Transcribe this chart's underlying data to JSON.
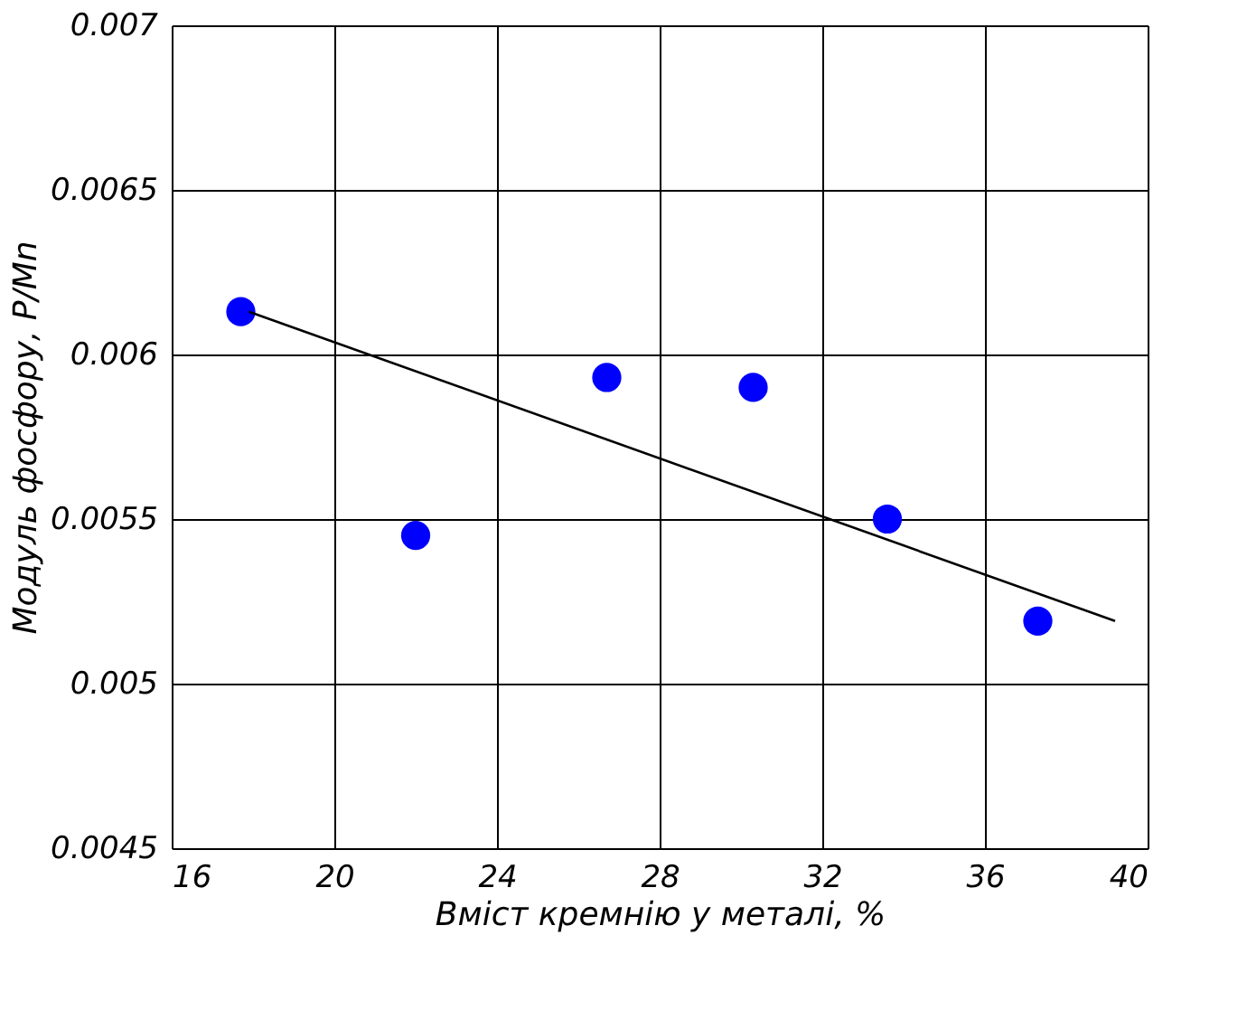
{
  "chart_data": {
    "type": "scatter",
    "xlabel": "Вміст кремнію у металі, %",
    "ylabel": "Модуль фосфору, P/Mn",
    "series": [
      {
        "color": "#0000ff",
        "marker": "circle",
        "x": [
          17.7,
          22.0,
          26.7,
          30.3,
          33.6,
          37.3
        ],
        "values": [
          0.00613,
          0.00545,
          0.00593,
          0.0059,
          0.0055,
          0.00519
        ]
      },
      {
        "type": "line",
        "color": "#000000",
        "marker": "none",
        "x": [
          17.9,
          39.2
        ],
        "values": [
          0.00613,
          0.00519
        ]
      }
    ],
    "xlim": [
      16,
      40
    ],
    "xticks": [
      16,
      20,
      24,
      28,
      32,
      36,
      40
    ],
    "ylim": [
      0.0045,
      0.007
    ],
    "yticks": [
      0.0045,
      0.005,
      0.0055,
      0.006,
      0.0065,
      0.007
    ],
    "grid": true
  }
}
